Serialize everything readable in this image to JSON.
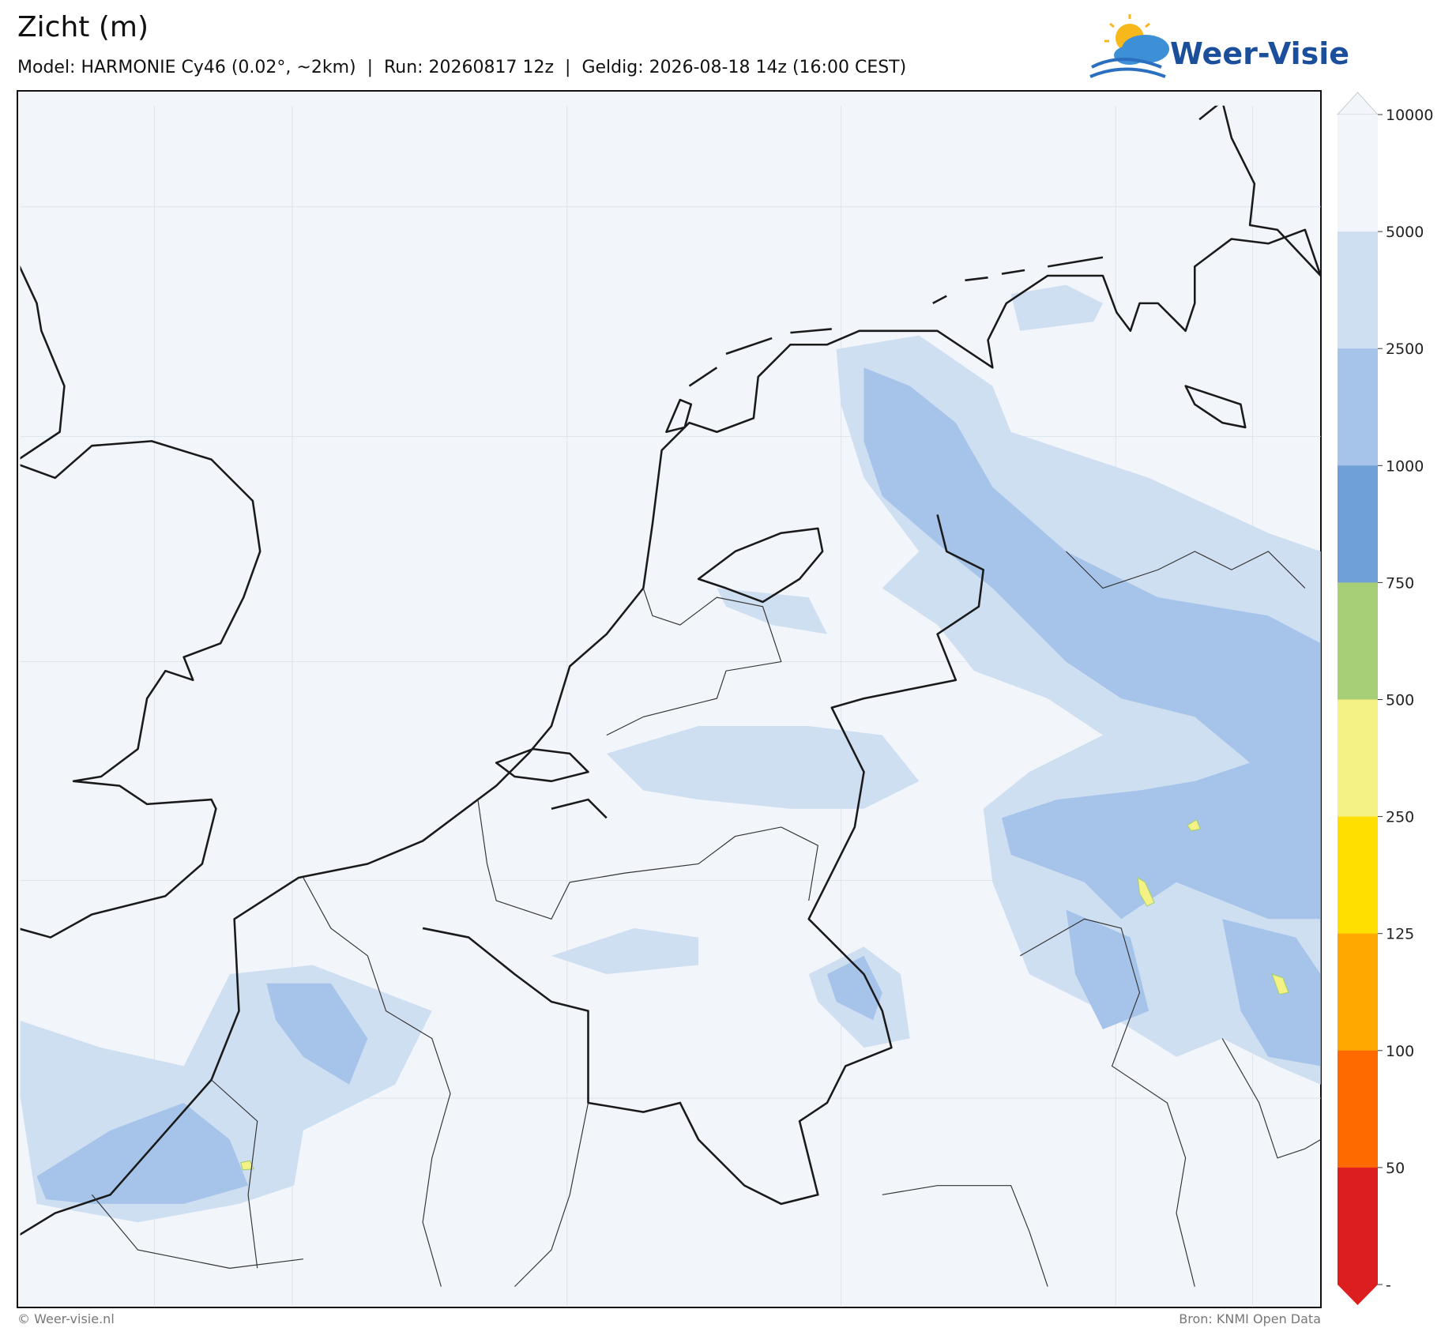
{
  "header": {
    "title": "Zicht (m)",
    "subtitle": "Model: HARMONIE Cy46 (0.02°, ~2km)  |  Run: 20260817 12z  |  Geldig: 2026-08-18 14z (16:00 CEST)"
  },
  "logo": {
    "text": "Weer-Visie"
  },
  "colorbar": {
    "ticks": [
      10000,
      5000,
      2500,
      1000,
      750,
      500,
      250,
      125,
      100,
      50
    ],
    "bottom_label": "-",
    "colors": [
      "#f2f6fb",
      "#cfdff2",
      "#a6c4ea",
      "#6fa0d8",
      "#a7cf78",
      "#f4f285",
      "#ffdf00",
      "#ffa800",
      "#ff6a00",
      "#dd1e1e"
    ]
  },
  "footer": {
    "left": "© Weer-visie.nl",
    "right": "Bron: KNMI Open Data"
  }
}
